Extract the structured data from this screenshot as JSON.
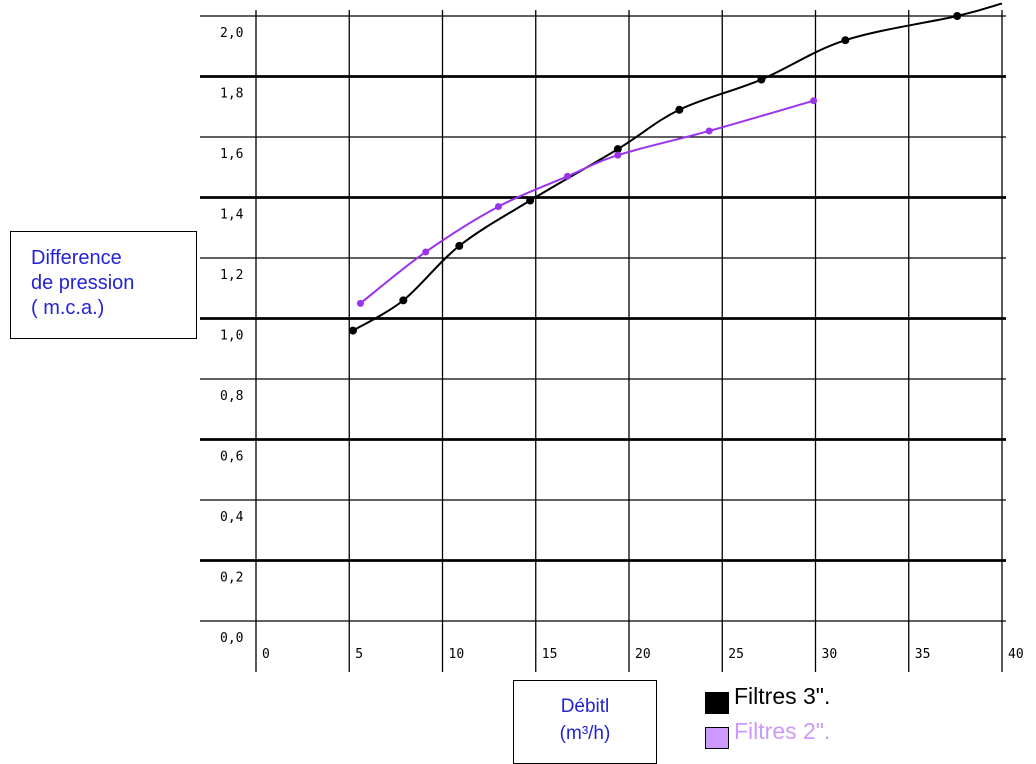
{
  "chart_data": {
    "type": "line",
    "xlabel": "Débitl\n(m³/h)",
    "ylabel": "Difference\nde pression\n( m.c.a.)",
    "xlim": [
      0,
      40
    ],
    "ylim": [
      0,
      2.0
    ],
    "x_ticks": [
      "0",
      "5",
      "10",
      "15",
      "20",
      "25",
      "30",
      "35",
      "40"
    ],
    "y_ticks": [
      "0,0",
      "0,2",
      "0,4",
      "0,6",
      "0,8",
      "1,0",
      "1,2",
      "1,4",
      "1,6",
      "1,8",
      "2,0"
    ],
    "grid": true,
    "legend_position": "bottom-right",
    "series": [
      {
        "name": "Filtres 3\".",
        "color": "#000000",
        "points": [
          [
            5.2,
            0.96
          ],
          [
            7.9,
            1.06
          ],
          [
            10.9,
            1.24
          ],
          [
            14.7,
            1.39
          ],
          [
            19.4,
            1.56
          ],
          [
            22.7,
            1.69
          ],
          [
            27.1,
            1.79
          ],
          [
            31.6,
            1.92
          ],
          [
            37.6,
            2.0
          ]
        ]
      },
      {
        "name": "Filtres 2\".",
        "color": "#9933ee",
        "legend_color": "#cc99ff",
        "points": [
          [
            5.6,
            1.05
          ],
          [
            9.1,
            1.22
          ],
          [
            13.0,
            1.37
          ],
          [
            16.7,
            1.47
          ],
          [
            19.4,
            1.54
          ],
          [
            24.3,
            1.62
          ],
          [
            29.9,
            1.72
          ]
        ]
      }
    ]
  }
}
